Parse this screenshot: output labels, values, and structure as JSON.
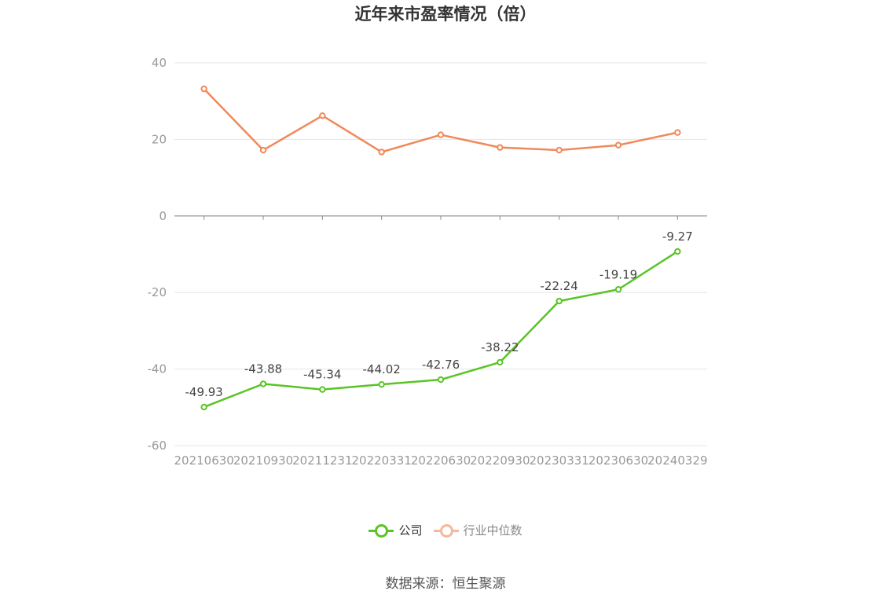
{
  "chart_data": {
    "type": "line",
    "title": "近年来市盈率情况（倍）",
    "source": "数据来源：恒生聚源",
    "categories": [
      "20210630",
      "20210930",
      "20211231",
      "20220331",
      "20220630",
      "20220930",
      "20230331",
      "20230630",
      "20240329"
    ],
    "ylim": [
      -60,
      40
    ],
    "yticks": [
      40,
      20,
      0,
      -20,
      -40,
      -60
    ],
    "grid": true,
    "legend_position": "bottom",
    "series": [
      {
        "name": "公司",
        "color": "#5ac425",
        "values": [
          -49.93,
          -43.88,
          -45.34,
          -44.02,
          -42.76,
          -38.22,
          -22.24,
          -19.19,
          -9.27
        ],
        "labels": [
          "-49.93",
          "-43.88",
          "-45.34",
          "-44.02",
          "-42.76",
          "-38.22",
          "-22.24",
          "-19.19",
          "-9.27"
        ],
        "legend_color": "#5ac425"
      },
      {
        "name": "行业中位数",
        "color": "#f0895a",
        "values": [
          33.2,
          17.2,
          26.2,
          16.7,
          21.2,
          17.9,
          17.2,
          18.5,
          21.8
        ],
        "legend_color": "#f5b89a"
      }
    ]
  }
}
